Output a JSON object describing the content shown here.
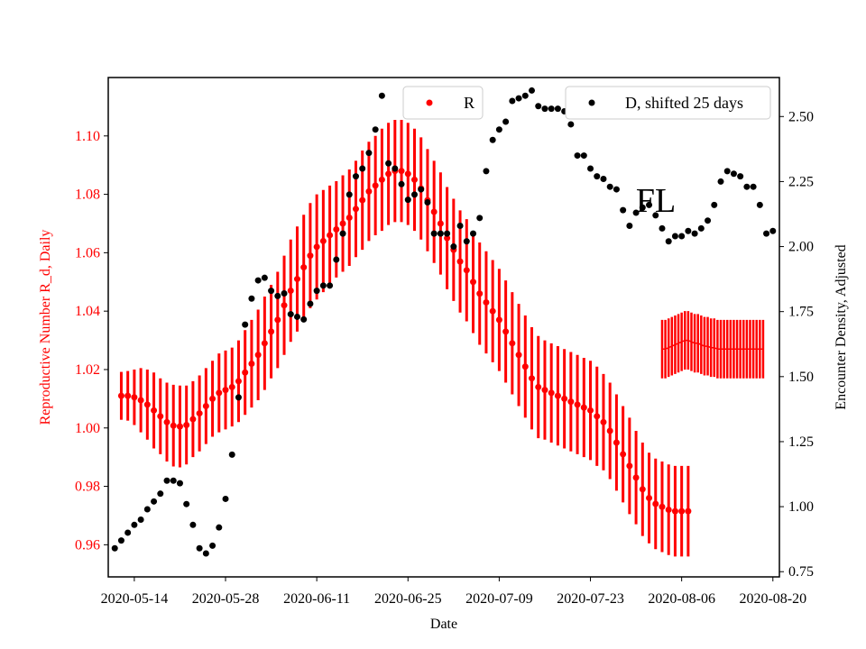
{
  "chart_data": {
    "type": "scatter",
    "title": "",
    "annotation": "FL",
    "xlabel": "Date",
    "ylabel_left": "Reproductive Number R_d, Daily",
    "ylabel_right": "Encounter Density, Adjusted",
    "x_start": "2020-05-12",
    "x_step_days": 1,
    "xlim": [
      "2020-05-10",
      "2020-08-21"
    ],
    "ylim_left": [
      0.949,
      1.12
    ],
    "ylim_right": [
      0.73,
      2.65
    ],
    "xticks": [
      "2020-05-14",
      "2020-05-28",
      "2020-06-11",
      "2020-06-25",
      "2020-07-09",
      "2020-07-23",
      "2020-08-06",
      "2020-08-20"
    ],
    "yticks_left": [
      "0.96",
      "0.98",
      "1.00",
      "1.02",
      "1.04",
      "1.06",
      "1.08",
      "1.10"
    ],
    "yticks_right": [
      "0.75",
      "1.00",
      "1.25",
      "1.50",
      "1.75",
      "2.00",
      "2.25",
      "2.50"
    ],
    "colors": {
      "R": "#ff0000",
      "D": "#000000"
    },
    "legend": [
      {
        "label": "R",
        "placement": "top-center"
      },
      {
        "label": "D, shifted 25 days",
        "placement": "top-right"
      }
    ],
    "series": [
      {
        "name": "R",
        "axis": "left",
        "values": [
          1.011,
          1.011,
          1.0105,
          1.0095,
          1.008,
          1.006,
          1.004,
          1.002,
          1.0008,
          1.0005,
          1.001,
          1.003,
          1.005,
          1.0075,
          1.01,
          1.012,
          1.013,
          1.014,
          1.016,
          1.019,
          1.022,
          1.025,
          1.029,
          1.033,
          1.037,
          1.042,
          1.047,
          1.051,
          1.055,
          1.059,
          1.062,
          1.064,
          1.066,
          1.068,
          1.07,
          1.072,
          1.075,
          1.078,
          1.081,
          1.083,
          1.085,
          1.087,
          1.088,
          1.088,
          1.087,
          1.085,
          1.082,
          1.078,
          1.074,
          1.07,
          1.065,
          1.061,
          1.057,
          1.054,
          1.05,
          1.046,
          1.043,
          1.04,
          1.037,
          1.033,
          1.029,
          1.025,
          1.021,
          1.017,
          1.014,
          1.013,
          1.012,
          1.011,
          1.01,
          1.009,
          1.008,
          1.007,
          1.006,
          1.004,
          1.002,
          0.999,
          0.995,
          0.991,
          0.987,
          0.983,
          0.979,
          0.976,
          0.974,
          0.973,
          0.972,
          0.9715,
          0.9715,
          0.9715
        ]
      },
      {
        "name": "R error",
        "axis": "left",
        "values": [
          0.0082,
          0.0085,
          0.0095,
          0.011,
          0.012,
          0.013,
          0.013,
          0.0135,
          0.014,
          0.014,
          0.0135,
          0.013,
          0.013,
          0.013,
          0.013,
          0.0135,
          0.0135,
          0.0135,
          0.014,
          0.0145,
          0.015,
          0.0155,
          0.016,
          0.016,
          0.0165,
          0.017,
          0.0175,
          0.018,
          0.018,
          0.018,
          0.018,
          0.0175,
          0.017,
          0.0165,
          0.0165,
          0.0165,
          0.0165,
          0.017,
          0.017,
          0.017,
          0.0175,
          0.0175,
          0.0175,
          0.0175,
          0.0175,
          0.0175,
          0.0175,
          0.0175,
          0.0175,
          0.0175,
          0.0175,
          0.0175,
          0.0175,
          0.0175,
          0.0175,
          0.0175,
          0.0175,
          0.0175,
          0.0175,
          0.0175,
          0.0175,
          0.0175,
          0.0175,
          0.0175,
          0.0175,
          0.017,
          0.017,
          0.017,
          0.017,
          0.017,
          0.017,
          0.017,
          0.017,
          0.017,
          0.0165,
          0.0165,
          0.0165,
          0.0165,
          0.0165,
          0.016,
          0.016,
          0.0155,
          0.0155,
          0.0155,
          0.0155,
          0.0155,
          0.0155,
          0.0155
        ]
      },
      {
        "name": "R (projected)",
        "axis": "left",
        "x_start": "2020-08-03",
        "values": [
          1.027,
          1.027,
          1.0275,
          1.028,
          1.0285,
          1.029,
          1.0295,
          1.03,
          1.03,
          1.0295,
          1.029,
          1.029,
          1.0285,
          1.028,
          1.028,
          1.0275,
          1.0275,
          1.027,
          1.027,
          1.027,
          1.027,
          1.027,
          1.027,
          1.027,
          1.027,
          1.027,
          1.027,
          1.027,
          1.027,
          1.027,
          1.027,
          1.027
        ],
        "error": 0.01
      },
      {
        "name": "D, shifted 25 days",
        "axis": "right",
        "x_start": "2020-05-11",
        "values": [
          0.84,
          0.87,
          0.9,
          0.93,
          0.95,
          0.99,
          1.02,
          1.05,
          1.1,
          1.1,
          1.09,
          1.01,
          0.93,
          0.84,
          0.82,
          0.85,
          0.92,
          1.03,
          1.2,
          1.42,
          1.7,
          1.8,
          1.87,
          1.88,
          1.83,
          1.81,
          1.82,
          1.74,
          1.73,
          1.72,
          1.78,
          1.83,
          1.85,
          1.85,
          1.95,
          2.05,
          2.2,
          2.27,
          2.3,
          2.36,
          2.45,
          2.58,
          2.32,
          2.3,
          2.24,
          2.18,
          2.2,
          2.22,
          2.17,
          2.05,
          2.05,
          2.05,
          2.0,
          2.08,
          2.02,
          2.05,
          2.11,
          2.29,
          2.41,
          2.45,
          2.48,
          2.56,
          2.57,
          2.58,
          2.6,
          2.54,
          2.53,
          2.53,
          2.53,
          2.52,
          2.47,
          2.35,
          2.35,
          2.3,
          2.27,
          2.26,
          2.23,
          2.22,
          2.14,
          2.08,
          2.13,
          2.15,
          2.16,
          2.12,
          2.07,
          2.02,
          2.04,
          2.04,
          2.06,
          2.05,
          2.07,
          2.1,
          2.16,
          2.25,
          2.29,
          2.28,
          2.27,
          2.23,
          2.23,
          2.16,
          2.05,
          2.06
        ]
      }
    ]
  }
}
